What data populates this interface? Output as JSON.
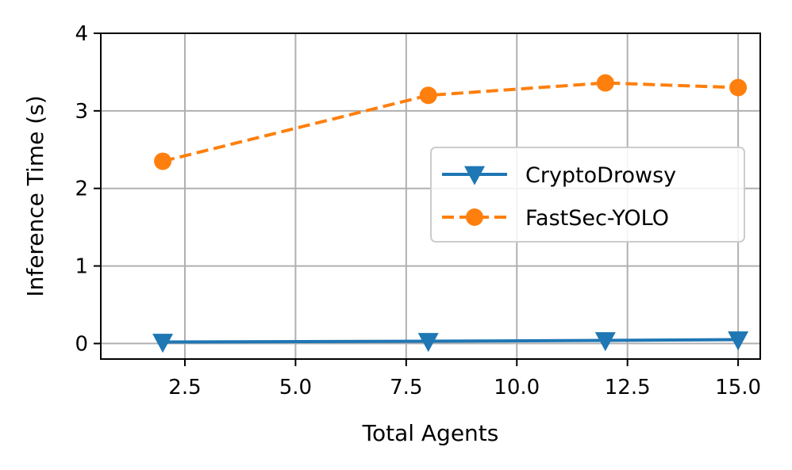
{
  "chart_data": {
    "type": "line",
    "title": "",
    "xlabel": "Total Agents",
    "ylabel": "Inference Time (s)",
    "xlim": [
      0.6,
      15.5
    ],
    "ylim": [
      -0.2,
      4.0
    ],
    "xticks": [
      2.5,
      5.0,
      7.5,
      10.0,
      12.5,
      15.0
    ],
    "xtick_labels": [
      "2.5",
      "5.0",
      "7.5",
      "10.0",
      "12.5",
      "15.0"
    ],
    "yticks": [
      0,
      1,
      2,
      3,
      4
    ],
    "ytick_labels": [
      "0",
      "1",
      "2",
      "3",
      "4"
    ],
    "grid": true,
    "legend_position": "center-right",
    "series": [
      {
        "name": "CryptoDrowsy",
        "x": [
          2,
          8,
          12,
          15
        ],
        "y": [
          0.02,
          0.03,
          0.04,
          0.05
        ],
        "color": "#1f77b4",
        "line_style": "solid",
        "marker": "triangle-down"
      },
      {
        "name": "FastSec-YOLO",
        "x": [
          2,
          8,
          12,
          15
        ],
        "y": [
          2.35,
          3.2,
          3.36,
          3.3
        ],
        "color": "#ff7f0e",
        "line_style": "dashed",
        "marker": "circle"
      }
    ]
  }
}
